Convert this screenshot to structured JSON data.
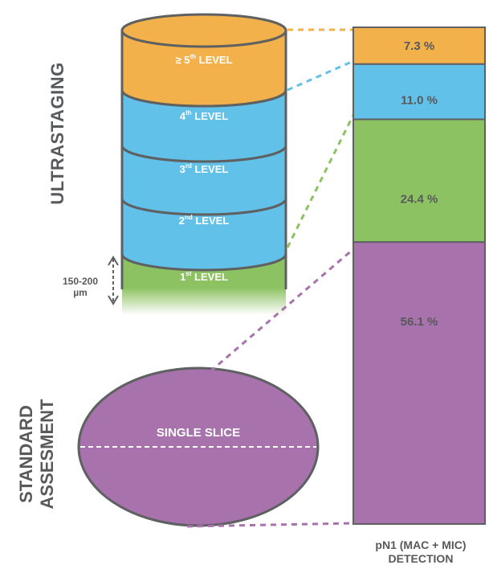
{
  "chart_data": {
    "type": "bar",
    "subtype": "stacked-column-with-cylinder-illustration",
    "categories": [
      "pN1 (MAC + MIC)\nDETECTION"
    ],
    "series": [
      {
        "name": "1st LEVEL / SINGLE SLICE",
        "values": [
          56.1
        ],
        "color": "#A872AC",
        "label": "56.1 %"
      },
      {
        "name": "2nd LEVEL",
        "values": [
          24.4
        ],
        "color": "#8DC262",
        "label": "24.4 %"
      },
      {
        "name": "3rd LEVEL",
        "values": [
          11.0
        ],
        "color": "#62C1E9",
        "label": "11.0 %"
      },
      {
        "name": "≥ 5th LEVEL",
        "values": [
          7.3
        ],
        "color": "#F2B14A",
        "label": "7.3 %"
      }
    ],
    "ylim": [
      0,
      100
    ],
    "xlabel_lines": [
      "pN1 (MAC + MIC)",
      "DETECTION"
    ]
  },
  "cylinder": {
    "levels": [
      {
        "base": "≥ 5",
        "sup": "th",
        "suffix": " LEVEL",
        "color": "#F2B14A"
      },
      {
        "base": "4",
        "sup": "th",
        "suffix": " LEVEL",
        "color": "#62C1E9"
      },
      {
        "base": "3",
        "sup": "rd",
        "suffix": " LEVEL",
        "color": "#62C1E9"
      },
      {
        "base": "2",
        "sup": "nd",
        "suffix": " LEVEL",
        "color": "#62C1E9"
      },
      {
        "base": "1",
        "sup": "st",
        "suffix": " LEVEL",
        "color": "#8DC262"
      }
    ],
    "thickness_label": [
      "150-200",
      "µm"
    ]
  },
  "ellipse_label": "SINGLE SLICE",
  "section_labels": {
    "ultrastaging": "ULTRASTAGING",
    "standard": [
      "STANDARD",
      "ASSESMENT"
    ]
  },
  "colors": {
    "orange": "#F2B14A",
    "blue": "#62C1E9",
    "green": "#8DC262",
    "purple": "#A872AC",
    "outline": "#5F6062",
    "text_gray": "#58595B"
  }
}
